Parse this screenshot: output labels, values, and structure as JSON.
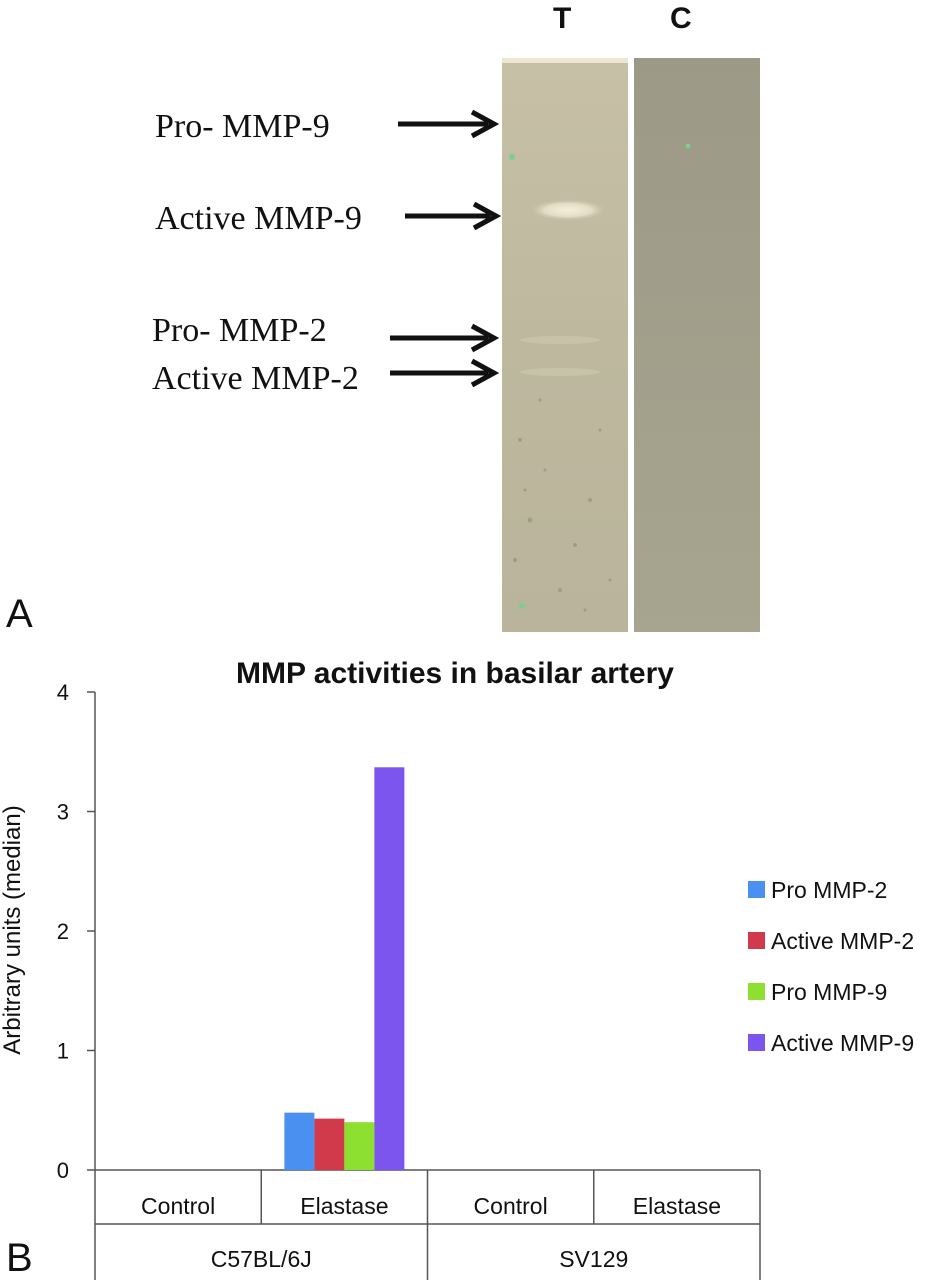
{
  "panel_a": {
    "letter": "A",
    "lane_headers": [
      "T",
      "C"
    ],
    "band_labels": [
      "Pro- MMP-9",
      "Active MMP-9",
      "Pro- MMP-2",
      "Active MMP-2"
    ]
  },
  "panel_b": {
    "letter": "B"
  },
  "chart_data": {
    "type": "bar",
    "title": "MMP activities in basilar artery",
    "ylabel": "Arbitrary units (median)",
    "xlabel": "",
    "ylim": [
      0,
      4
    ],
    "yticks": [
      "0",
      "1",
      "2",
      "3",
      "4"
    ],
    "grid": false,
    "legend_position": "right",
    "categories": [
      "Control",
      "Elastase",
      "Control",
      "Elastase"
    ],
    "groups": [
      {
        "label": "C57BL/6J",
        "span": [
          0,
          1
        ]
      },
      {
        "label": "SV129",
        "span": [
          2,
          3
        ]
      }
    ],
    "series": [
      {
        "name": "Pro MMP-2",
        "color": "#4a90f0",
        "values": [
          0,
          0.48,
          0,
          0
        ]
      },
      {
        "name": "Active MMP-2",
        "color": "#d03a4a",
        "values": [
          0,
          0.43,
          0,
          0
        ]
      },
      {
        "name": "Pro MMP-9",
        "color": "#8ee030",
        "values": [
          0,
          0.4,
          0,
          0
        ]
      },
      {
        "name": "Active MMP-9",
        "color": "#7b55ee",
        "values": [
          0,
          3.37,
          0,
          0
        ]
      }
    ]
  }
}
